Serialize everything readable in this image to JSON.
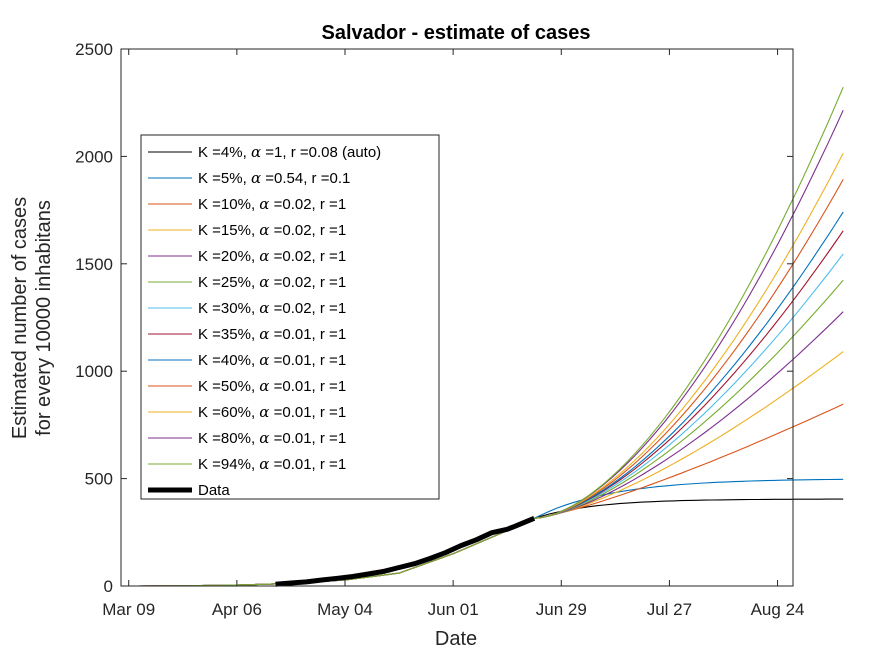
{
  "chart_data": {
    "type": "line",
    "title": "Salvador - estimate of cases",
    "xlabel": "Date",
    "ylabel_lines": [
      "Estimated number of cases",
      "for every 10000 inhabitans"
    ],
    "xlim": [
      -2,
      172
    ],
    "ylim": [
      0,
      2500
    ],
    "x_unit": "days since Mar 09",
    "xticks": [
      {
        "value": 0,
        "label": "Mar 09"
      },
      {
        "value": 28,
        "label": "Apr 06"
      },
      {
        "value": 56,
        "label": "May 04"
      },
      {
        "value": 84,
        "label": "Jun 01"
      },
      {
        "value": 112,
        "label": "Jun 29"
      },
      {
        "value": 140,
        "label": "Jul 27"
      },
      {
        "value": 168,
        "label": "Aug 24"
      }
    ],
    "yticks": [
      {
        "value": 0,
        "label": "0"
      },
      {
        "value": 500,
        "label": "500"
      },
      {
        "value": 1000,
        "label": "1000"
      },
      {
        "value": 1500,
        "label": "1500"
      },
      {
        "value": 2000,
        "label": "2000"
      },
      {
        "value": 2500,
        "label": "2500"
      }
    ],
    "legend_position": "upper-left",
    "fit_start": 105,
    "fit_end": 186,
    "series": [
      {
        "name": "K =4%, α =1, r =0.08 (auto)",
        "k": "4%",
        "alpha": "1",
        "r": "0.08 (auto)",
        "color": "#000000",
        "start_value": 315,
        "final_value": 405,
        "curve": "saturate",
        "rate": 0.065
      },
      {
        "name": "K =5%, α =0.54, r =0.1",
        "k": "5%",
        "alpha": "0.54",
        "r": "0.1",
        "color": "#0072BD",
        "start_value": 315,
        "final_value": 500,
        "curve": "saturate",
        "rate": 0.05
      },
      {
        "name": "K =10%, α =0.02, r =1",
        "k": "10%",
        "alpha": "0.02",
        "r": "1",
        "color": "#D95319",
        "start_value": 315,
        "final_value": 855,
        "curve": "power",
        "exponent": 1.25
      },
      {
        "name": "K =15%, α =0.02, r =1",
        "k": "15%",
        "alpha": "0.02",
        "r": "1",
        "color": "#EDB120",
        "start_value": 315,
        "final_value": 1105,
        "curve": "power",
        "exponent": 1.4
      },
      {
        "name": "K =20%, α =0.02, r =1",
        "k": "20%",
        "alpha": "0.02",
        "r": "1",
        "color": "#7E2F8E",
        "start_value": 315,
        "final_value": 1295,
        "curve": "power",
        "exponent": 1.48
      },
      {
        "name": "K =25%, α =0.02, r =1",
        "k": "25%",
        "alpha": "0.02",
        "r": "1",
        "color": "#77AC30",
        "start_value": 315,
        "final_value": 1445,
        "curve": "power",
        "exponent": 1.52
      },
      {
        "name": "K =30%, α =0.02, r =1",
        "k": "30%",
        "alpha": "0.02",
        "r": "1",
        "color": "#4DBEEE",
        "start_value": 315,
        "final_value": 1570,
        "curve": "power",
        "exponent": 1.55
      },
      {
        "name": "K =35%, α =0.01, r =1",
        "k": "35%",
        "alpha": "0.01",
        "r": "1",
        "color": "#A2142F",
        "start_value": 315,
        "final_value": 1680,
        "curve": "power",
        "exponent": 1.57
      },
      {
        "name": "K =40%, α =0.01, r =1",
        "k": "40%",
        "alpha": "0.01",
        "r": "1",
        "color": "#0072BD",
        "start_value": 315,
        "final_value": 1770,
        "curve": "power",
        "exponent": 1.59
      },
      {
        "name": "K =50%, α =0.01, r =1",
        "k": "50%",
        "alpha": "0.01",
        "r": "1",
        "color": "#D95319",
        "start_value": 315,
        "final_value": 1925,
        "curve": "power",
        "exponent": 1.62
      },
      {
        "name": "K =60%, α =0.01, r =1",
        "k": "60%",
        "alpha": "0.01",
        "r": "1",
        "color": "#EDB120",
        "start_value": 315,
        "final_value": 2050,
        "curve": "power",
        "exponent": 1.64
      },
      {
        "name": "K =80%, α =0.01, r =1",
        "k": "80%",
        "alpha": "0.01",
        "r": "1",
        "color": "#7E2F8E",
        "start_value": 315,
        "final_value": 2255,
        "curve": "power",
        "exponent": 1.67
      },
      {
        "name": "K =94%, α =0.01, r =1",
        "k": "94%",
        "alpha": "0.01",
        "r": "1",
        "color": "#77AC30",
        "start_value": 315,
        "final_value": 2365,
        "curve": "power",
        "exponent": 1.69
      }
    ],
    "model_prefix": {
      "x": [
        2,
        14,
        28,
        42,
        56,
        70,
        84,
        98,
        105
      ],
      "y": [
        0,
        1,
        4,
        12,
        28,
        60,
        150,
        258,
        315
      ]
    },
    "data_series": {
      "name": "Data",
      "color": "#000000",
      "x": [
        38,
        42,
        46,
        50,
        54,
        58,
        62,
        66,
        70,
        74,
        78,
        82,
        86,
        90,
        94,
        98,
        100,
        102,
        105
      ],
      "y": [
        8,
        14,
        19,
        28,
        36,
        44,
        56,
        68,
        86,
        104,
        128,
        155,
        188,
        215,
        248,
        264,
        278,
        293,
        315
      ]
    }
  }
}
